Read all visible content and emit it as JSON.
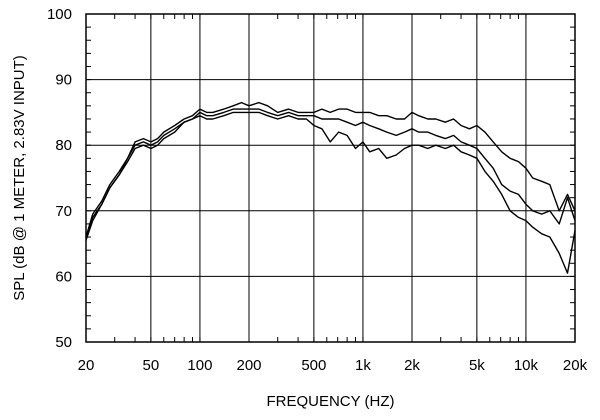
{
  "chart_data": {
    "type": "line",
    "title": "",
    "xlabel": "FREQUENCY  (HZ)",
    "ylabel": "SPL (dB @ 1 METER, 2.83V INPUT)",
    "x_scale": "log",
    "xlim": [
      20,
      20000
    ],
    "ylim": [
      50,
      100
    ],
    "grid": true,
    "legend": "none",
    "line_color": "#000000",
    "x_ticks": [
      {
        "value": 20,
        "label": "20"
      },
      {
        "value": 50,
        "label": "50"
      },
      {
        "value": 100,
        "label": "100"
      },
      {
        "value": 200,
        "label": "200"
      },
      {
        "value": 500,
        "label": "500"
      },
      {
        "value": 1000,
        "label": "1k"
      },
      {
        "value": 2000,
        "label": "2k"
      },
      {
        "value": 5000,
        "label": "5k"
      },
      {
        "value": 10000,
        "label": "10k"
      },
      {
        "value": 20000,
        "label": "20k"
      }
    ],
    "y_ticks": [
      {
        "value": 50,
        "label": "50"
      },
      {
        "value": 60,
        "label": "60"
      },
      {
        "value": 70,
        "label": "70"
      },
      {
        "value": 80,
        "label": "80"
      },
      {
        "value": 90,
        "label": "90"
      },
      {
        "value": 100,
        "label": "100"
      }
    ],
    "series": [
      {
        "x": [
          20,
          22,
          25,
          28,
          32,
          36,
          40,
          45,
          50,
          55,
          60,
          70,
          80,
          90,
          100,
          110,
          120,
          140,
          160,
          180,
          200,
          230,
          260,
          300,
          350,
          400,
          450,
          500,
          560,
          630,
          710,
          800,
          900,
          1000,
          1100,
          1250,
          1400,
          1600,
          1800,
          2000,
          2200,
          2500,
          2800,
          3200,
          3600,
          4000,
          4500,
          5000,
          5600,
          6300,
          7100,
          8000,
          9000,
          10000,
          11000,
          12500,
          14000,
          16000,
          18000,
          20000
        ],
        "y": [
          66,
          69.5,
          71.5,
          74,
          76,
          78,
          80.5,
          81,
          80.5,
          81,
          82,
          83,
          84,
          84.5,
          85.5,
          85,
          85,
          85.5,
          86,
          86.5,
          86,
          86.5,
          86,
          85,
          85.5,
          85,
          85,
          85,
          85.5,
          85,
          85.5,
          85.5,
          85,
          85,
          85,
          84.5,
          84.5,
          84,
          84,
          85,
          84.5,
          84,
          84,
          83.5,
          84,
          83,
          82.5,
          83,
          82,
          80.5,
          79,
          78,
          77.5,
          76.5,
          75,
          74.5,
          74,
          70,
          72.5,
          70
        ]
      },
      {
        "x": [
          20,
          22,
          25,
          28,
          32,
          36,
          40,
          45,
          50,
          55,
          60,
          70,
          80,
          90,
          100,
          110,
          120,
          140,
          160,
          180,
          200,
          230,
          260,
          300,
          350,
          400,
          450,
          500,
          560,
          630,
          710,
          800,
          900,
          1000,
          1100,
          1250,
          1400,
          1600,
          1800,
          2000,
          2200,
          2500,
          2800,
          3200,
          3600,
          4000,
          4500,
          5000,
          5600,
          6300,
          7100,
          8000,
          9000,
          10000,
          11000,
          12500,
          14000,
          16000,
          18000,
          20000
        ],
        "y": [
          66,
          69,
          71,
          73.5,
          75.5,
          78,
          80,
          80.5,
          80,
          80.5,
          81.5,
          82.5,
          83.5,
          84,
          85,
          84.5,
          84.5,
          85,
          85.5,
          85.5,
          85.5,
          85.5,
          85,
          84.5,
          85,
          84.5,
          84.5,
          84.5,
          84,
          84,
          84,
          83.5,
          83,
          83.5,
          83,
          82.5,
          82,
          81.5,
          82,
          82.5,
          82,
          82,
          81.5,
          81,
          81.5,
          80.5,
          80,
          79.5,
          78,
          76.5,
          74,
          73,
          72.5,
          71,
          70,
          69.5,
          70,
          68,
          72,
          68.5
        ]
      },
      {
        "x": [
          20,
          22,
          25,
          28,
          32,
          36,
          40,
          45,
          50,
          55,
          60,
          70,
          80,
          90,
          100,
          110,
          120,
          140,
          160,
          180,
          200,
          230,
          260,
          300,
          350,
          400,
          450,
          500,
          560,
          630,
          710,
          800,
          900,
          1000,
          1100,
          1250,
          1400,
          1600,
          1800,
          2000,
          2200,
          2500,
          2800,
          3200,
          3600,
          4000,
          4500,
          5000,
          5600,
          6300,
          7100,
          8000,
          9000,
          10000,
          11000,
          12500,
          14000,
          16000,
          18000,
          20000
        ],
        "y": [
          65.5,
          68.5,
          71,
          73.5,
          75.5,
          77.5,
          79.5,
          80,
          79.5,
          80,
          81,
          82,
          83.5,
          84,
          84.5,
          84,
          84,
          84.5,
          85,
          85,
          85,
          85,
          84.5,
          84,
          84.5,
          84,
          84,
          83,
          82.5,
          80.5,
          82,
          81.5,
          79.5,
          80.5,
          79,
          79.5,
          78,
          78.5,
          79.5,
          80,
          80,
          79.5,
          80,
          79.5,
          80,
          79,
          78.5,
          78,
          76,
          74.5,
          72.5,
          70,
          69,
          68.5,
          67.5,
          66.5,
          66,
          63.5,
          60.5,
          67
        ]
      }
    ]
  }
}
